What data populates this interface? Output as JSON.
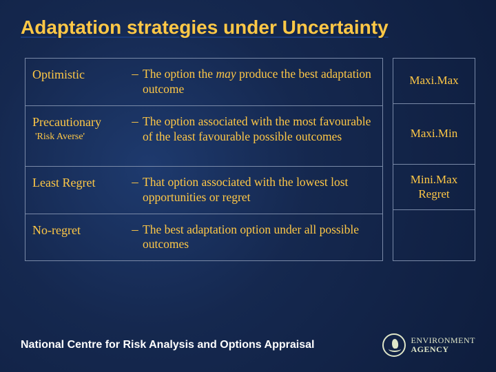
{
  "title": "Adaptation strategies under Uncertainty",
  "rows": [
    {
      "strategy": "Optimistic",
      "sub": "",
      "dash": "–",
      "desc_pre": "The option the ",
      "desc_em": "may",
      "desc_post": " produce the best adaptation outcome",
      "side": "Maxi.Max"
    },
    {
      "strategy": "Precautionary",
      "sub": "'Risk Averse'",
      "dash": "–",
      "desc_pre": "The option associated with the most favourable of the least favourable possible outcomes",
      "desc_em": "",
      "desc_post": "",
      "side": "Maxi.Min"
    },
    {
      "strategy": "Least Regret",
      "sub": "",
      "dash": "–",
      "desc_pre": "That option associated with the lowest lost opportunities or regret",
      "desc_em": "",
      "desc_post": "",
      "side": "Mini.Max Regret"
    },
    {
      "strategy": "No-regret",
      "sub": "",
      "dash": "–",
      "desc_pre": "The best adaptation option under all possible outcomes",
      "desc_em": "",
      "desc_post": "",
      "side": ""
    }
  ],
  "footer": "National Centre for Risk Analysis and Options Appraisal",
  "logo": {
    "line1": "ENVIRONMENT",
    "line2": "AGENCY"
  },
  "colors": {
    "background_center": "#1e3a6e",
    "background_outer": "#0e1d3d",
    "accent_text": "#ffc846",
    "border": "#7a8aa8",
    "footer_text": "#ffffff",
    "logo": "#dfe6c8"
  },
  "typography": {
    "title_fontsize": 28,
    "body_fontsize": 17.5,
    "footer_fontsize": 16,
    "title_family": "Arial",
    "body_family": "Georgia"
  }
}
